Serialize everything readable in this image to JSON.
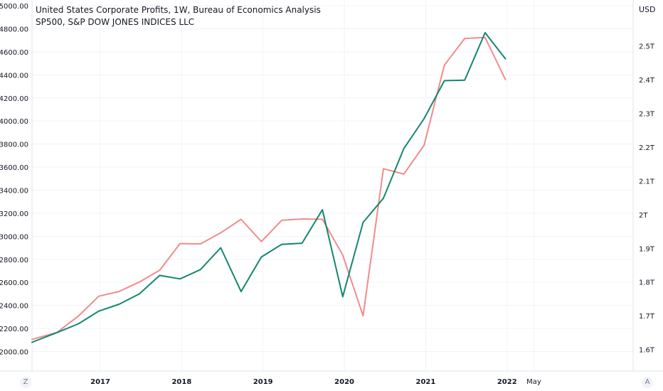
{
  "legend": {
    "line1": "United States Corporate Profits, 1W, Bureau of Economics Analysis",
    "line2": "SP500, S&P DOW JONES INDICES LLC"
  },
  "right_axis_unit": "USD",
  "buttons": {
    "left": "Z",
    "right": "A"
  },
  "colors": {
    "profits": "#f28b8b",
    "sp500": "#12876f",
    "grid": "#f0f3fa",
    "axis_text": "#131722"
  },
  "chart_data": {
    "type": "line",
    "x_tick_labels": [
      "2017",
      "2018",
      "2019",
      "2020",
      "2021",
      "2022",
      "May"
    ],
    "x_ticks": [
      2017.0,
      2018.0,
      2019.0,
      2020.0,
      2021.0,
      2022.0,
      2022.33
    ],
    "xlim": [
      2016.16,
      2023.55
    ],
    "left_axis": {
      "tick_labels": [
        "2000.00",
        "2200.00",
        "2400.00",
        "2600.00",
        "2800.00",
        "3000.00",
        "3200.00",
        "3400.00",
        "3600.00",
        "3800.00",
        "4000.00",
        "4200.00",
        "4400.00",
        "4600.00",
        "4800.00",
        "5000.00"
      ],
      "ticks": [
        2000,
        2200,
        2400,
        2600,
        2800,
        3000,
        3200,
        3400,
        3600,
        3800,
        4000,
        4200,
        4400,
        4600,
        4800,
        5000
      ],
      "ylim": [
        1830,
        5050
      ]
    },
    "right_axis": {
      "tick_labels": [
        "1.6T",
        "1.7T",
        "1.8T",
        "1.9T",
        "2T",
        "2.1T",
        "2.2T",
        "2.3T",
        "2.4T",
        "2.5T"
      ],
      "ticks": [
        1.6,
        1.7,
        1.8,
        1.9,
        2.0,
        2.1,
        2.2,
        2.3,
        2.4,
        2.5
      ],
      "ylim": [
        1.536,
        2.636
      ]
    },
    "series": [
      {
        "name": "United States Corporate Profits",
        "axis": "right",
        "x": [
          2016.16,
          2016.47,
          2016.73,
          2016.98,
          2017.23,
          2017.48,
          2017.73,
          2017.98,
          2018.23,
          2018.48,
          2018.73,
          2018.98,
          2019.23,
          2019.48,
          2019.73,
          2019.98,
          2020.23,
          2020.48,
          2020.73,
          2020.98,
          2021.23,
          2021.48,
          2021.73,
          2021.98
        ],
        "values": [
          1.63,
          1.651,
          1.699,
          1.758,
          1.772,
          1.8,
          1.835,
          1.914,
          1.913,
          1.946,
          1.986,
          1.92,
          1.983,
          1.987,
          1.986,
          1.88,
          1.7,
          2.136,
          2.12,
          2.205,
          2.443,
          2.522,
          2.525,
          2.4
        ]
      },
      {
        "name": "SP500",
        "axis": "left",
        "x": [
          2016.16,
          2016.47,
          2016.73,
          2016.98,
          2017.23,
          2017.48,
          2017.73,
          2017.98,
          2018.23,
          2018.48,
          2018.73,
          2018.98,
          2019.23,
          2019.48,
          2019.73,
          2019.98,
          2020.23,
          2020.48,
          2020.73,
          2020.98,
          2021.23,
          2021.48,
          2021.73,
          2021.98
        ],
        "values": [
          2080,
          2165,
          2240,
          2350,
          2410,
          2500,
          2660,
          2630,
          2710,
          2900,
          2520,
          2820,
          2930,
          2940,
          3230,
          2475,
          3120,
          3330,
          3760,
          4020,
          4350,
          4355,
          4766,
          4540
        ]
      }
    ]
  }
}
